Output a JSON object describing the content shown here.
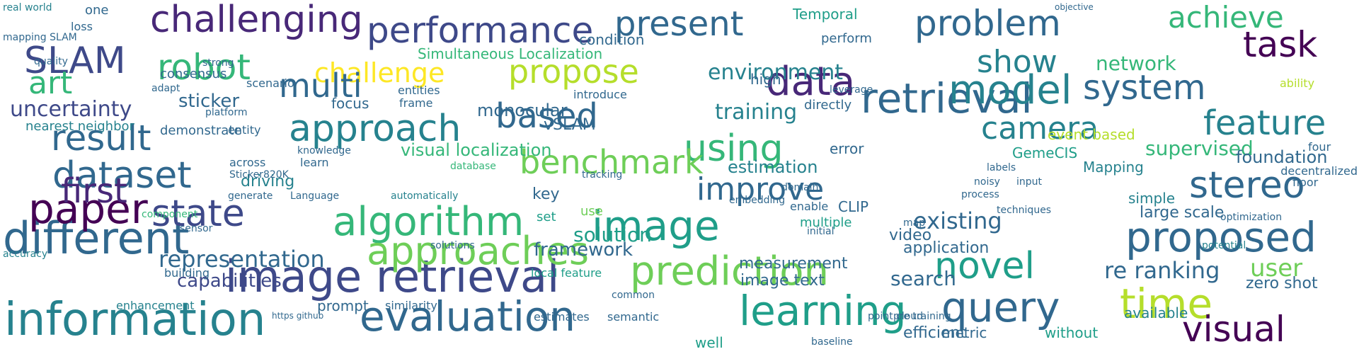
{
  "palette": [
    "#440154",
    "#482878",
    "#3e4989",
    "#31688e",
    "#26828e",
    "#1f9e89",
    "#35b779",
    "#6ece58",
    "#b5de2b",
    "#fde725"
  ],
  "words": [
    {
      "text": "different",
      "size": 62,
      "color": "#31688e"
    },
    {
      "text": "information",
      "size": 64,
      "color": "#26828e"
    },
    {
      "text": "image retrieval",
      "size": 62,
      "color": "#3e4989"
    },
    {
      "text": "evaluation",
      "size": 58,
      "color": "#31688e"
    },
    {
      "text": "learning",
      "size": 58,
      "color": "#1f9e89"
    },
    {
      "text": "query",
      "size": 58,
      "color": "#31688e"
    },
    {
      "text": "time",
      "size": 58,
      "color": "#b5de2b"
    },
    {
      "text": "visual",
      "size": 50,
      "color": "#440154"
    },
    {
      "text": "paper",
      "size": 58,
      "color": "#440154"
    },
    {
      "text": "state",
      "size": 52,
      "color": "#3e4989"
    },
    {
      "text": "algorithm",
      "size": 56,
      "color": "#35b779"
    },
    {
      "text": "image",
      "size": 58,
      "color": "#1f9e89"
    },
    {
      "text": "proposed",
      "size": 58,
      "color": "#31688e"
    },
    {
      "text": "approaches",
      "size": 54,
      "color": "#6ece58"
    },
    {
      "text": "prediction",
      "size": 56,
      "color": "#6ece58"
    },
    {
      "text": "novel",
      "size": 52,
      "color": "#1f9e89"
    },
    {
      "text": "retrieval",
      "size": 58,
      "color": "#31688e"
    },
    {
      "text": "model",
      "size": 56,
      "color": "#26828e"
    },
    {
      "text": "stereo",
      "size": 52,
      "color": "#31688e"
    },
    {
      "text": "dataset",
      "size": 52,
      "color": "#31688e"
    },
    {
      "text": "first",
      "size": 48,
      "color": "#482878"
    },
    {
      "text": "result",
      "size": 50,
      "color": "#31688e"
    },
    {
      "text": "approach",
      "size": 52,
      "color": "#26828e"
    },
    {
      "text": "based",
      "size": 48,
      "color": "#31688e"
    },
    {
      "text": "using",
      "size": 52,
      "color": "#35b779"
    },
    {
      "text": "benchmark",
      "size": 46,
      "color": "#6ece58"
    },
    {
      "text": "improve",
      "size": 44,
      "color": "#31688e"
    },
    {
      "text": "feature",
      "size": 48,
      "color": "#26828e"
    },
    {
      "text": "camera",
      "size": 44,
      "color": "#26828e"
    },
    {
      "text": "system",
      "size": 48,
      "color": "#31688e"
    },
    {
      "text": "data",
      "size": 56,
      "color": "#482878"
    },
    {
      "text": "robot",
      "size": 50,
      "color": "#35b779"
    },
    {
      "text": "challenging",
      "size": 52,
      "color": "#482878"
    },
    {
      "text": "SLAM",
      "size": 52,
      "color": "#3e4989"
    },
    {
      "text": "performance",
      "size": 50,
      "color": "#3e4989"
    },
    {
      "text": "present",
      "size": 48,
      "color": "#31688e"
    },
    {
      "text": "problem",
      "size": 50,
      "color": "#31688e"
    },
    {
      "text": "achieve",
      "size": 42,
      "color": "#35b779"
    },
    {
      "text": "task",
      "size": 50,
      "color": "#440154"
    },
    {
      "text": "challenge",
      "size": 38,
      "color": "#fde725"
    },
    {
      "text": "propose",
      "size": 46,
      "color": "#b5de2b"
    },
    {
      "text": "show",
      "size": 44,
      "color": "#26828e"
    },
    {
      "text": "art",
      "size": 44,
      "color": "#35b779"
    },
    {
      "text": "multi",
      "size": 46,
      "color": "#31688e"
    },
    {
      "text": "uncertainty",
      "size": 30,
      "color": "#3e4989"
    },
    {
      "text": "representation",
      "size": 32,
      "color": "#31688e"
    },
    {
      "text": "capabilities",
      "size": 26,
      "color": "#3e4989"
    },
    {
      "text": "framework",
      "size": 26,
      "color": "#31688e"
    },
    {
      "text": "re ranking",
      "size": 32,
      "color": "#31688e"
    },
    {
      "text": "existing",
      "size": 32,
      "color": "#31688e"
    },
    {
      "text": "environment",
      "size": 30,
      "color": "#26828e"
    },
    {
      "text": "training",
      "size": 30,
      "color": "#26828e"
    },
    {
      "text": "network",
      "size": 28,
      "color": "#35b779"
    },
    {
      "text": "supervised",
      "size": 28,
      "color": "#35b779"
    },
    {
      "text": "user",
      "size": 34,
      "color": "#6ece58"
    },
    {
      "text": "search",
      "size": 28,
      "color": "#31688e"
    },
    {
      "text": "solution",
      "size": 28,
      "color": "#1f9e89"
    },
    {
      "text": "sticker",
      "size": 26,
      "color": "#31688e"
    },
    {
      "text": "monocular",
      "size": 24,
      "color": "#31688e"
    },
    {
      "text": "estimation",
      "size": 24,
      "color": "#26828e"
    },
    {
      "text": "visual localization",
      "size": 24,
      "color": "#35b779"
    },
    {
      "text": "foundation",
      "size": 24,
      "color": "#31688e"
    },
    {
      "text": "Simultaneous Localization",
      "size": 20,
      "color": "#35b779"
    },
    {
      "text": "condition",
      "size": 20,
      "color": "#31688e"
    },
    {
      "text": "vSLAM",
      "size": 22,
      "color": "#31688e"
    },
    {
      "text": "driving",
      "size": 22,
      "color": "#26828e"
    },
    {
      "text": "video",
      "size": 22,
      "color": "#31688e"
    },
    {
      "text": "GemeCIS",
      "size": 20,
      "color": "#1f9e89"
    },
    {
      "text": "application",
      "size": 22,
      "color": "#31688e"
    },
    {
      "text": "image text",
      "size": 22,
      "color": "#31688e"
    },
    {
      "text": "measurement",
      "size": 22,
      "color": "#31688e"
    },
    {
      "text": "Mapping",
      "size": 20,
      "color": "#26828e"
    },
    {
      "text": "large scale",
      "size": 22,
      "color": "#31688e"
    },
    {
      "text": "efficient",
      "size": 22,
      "color": "#31688e"
    },
    {
      "text": "Temporal",
      "size": 20,
      "color": "#1f9e89"
    },
    {
      "text": "event based",
      "size": 20,
      "color": "#b5de2b"
    },
    {
      "text": "metric",
      "size": 20,
      "color": "#31688e"
    },
    {
      "text": "zero shot",
      "size": 22,
      "color": "#31688e"
    },
    {
      "text": "CLIP",
      "size": 20,
      "color": "#31688e"
    },
    {
      "text": "error",
      "size": 20,
      "color": "#31688e"
    },
    {
      "text": "prompt",
      "size": 20,
      "color": "#31688e"
    },
    {
      "text": "consensus",
      "size": 18,
      "color": "#31688e"
    },
    {
      "text": "demonstrate",
      "size": 18,
      "color": "#31688e"
    },
    {
      "text": "nearest neighbor",
      "size": 18,
      "color": "#26828e"
    },
    {
      "text": "well",
      "size": 20,
      "color": "#1f9e89"
    },
    {
      "text": "without",
      "size": 20,
      "color": "#1f9e89"
    },
    {
      "text": "available",
      "size": 20,
      "color": "#26828e"
    },
    {
      "text": "simple",
      "size": 20,
      "color": "#26828e"
    },
    {
      "text": "decentralized",
      "size": 16,
      "color": "#31688e"
    },
    {
      "text": "high",
      "size": 20,
      "color": "#31688e"
    },
    {
      "text": "focus",
      "size": 20,
      "color": "#31688e"
    },
    {
      "text": "multiple",
      "size": 18,
      "color": "#1f9e89"
    },
    {
      "text": "local feature",
      "size": 16,
      "color": "#1f9e89"
    },
    {
      "text": "building",
      "size": 16,
      "color": "#31688e"
    },
    {
      "text": "enhancement",
      "size": 16,
      "color": "#26828e"
    },
    {
      "text": "similarity",
      "size": 16,
      "color": "#31688e"
    },
    {
      "text": "estimates",
      "size": 16,
      "color": "#31688e"
    },
    {
      "text": "semantic",
      "size": 16,
      "color": "#31688e"
    },
    {
      "text": "learn",
      "size": 16,
      "color": "#31688e"
    },
    {
      "text": "knowledge",
      "size": 14,
      "color": "#31688e"
    },
    {
      "text": "across",
      "size": 16,
      "color": "#31688e"
    },
    {
      "text": "entity",
      "size": 16,
      "color": "#31688e"
    },
    {
      "text": "platform",
      "size": 14,
      "color": "#31688e"
    },
    {
      "text": "accuracy",
      "size": 14,
      "color": "#26828e"
    },
    {
      "text": "quality",
      "size": 14,
      "color": "#31688e"
    },
    {
      "text": "loss",
      "size": 16,
      "color": "#31688e"
    },
    {
      "text": "real world",
      "size": 14,
      "color": "#26828e"
    },
    {
      "text": "mapping SLAM",
      "size": 14,
      "color": "#31688e"
    },
    {
      "text": "generate",
      "size": 14,
      "color": "#31688e"
    },
    {
      "text": "Language",
      "size": 14,
      "color": "#31688e"
    },
    {
      "text": "automatically",
      "size": 14,
      "color": "#26828e"
    },
    {
      "text": "database",
      "size": 14,
      "color": "#35b779"
    },
    {
      "text": "tracking",
      "size": 14,
      "color": "#31688e"
    },
    {
      "text": "embedding",
      "size": 14,
      "color": "#31688e"
    },
    {
      "text": "domain",
      "size": 14,
      "color": "#31688e"
    },
    {
      "text": "Sticker820K",
      "size": 14,
      "color": "#31688e"
    },
    {
      "text": "sensor",
      "size": 14,
      "color": "#31688e"
    },
    {
      "text": "component",
      "size": 14,
      "color": "#35b779"
    },
    {
      "text": "key",
      "size": 22,
      "color": "#31688e"
    },
    {
      "text": "set",
      "size": 18,
      "color": "#1f9e89"
    },
    {
      "text": "use",
      "size": 18,
      "color": "#6ece58"
    },
    {
      "text": "common",
      "size": 14,
      "color": "#31688e"
    },
    {
      "text": "point cloud",
      "size": 14,
      "color": "#31688e"
    },
    {
      "text": "pre training",
      "size": 14,
      "color": "#31688e"
    },
    {
      "text": "baseline",
      "size": 14,
      "color": "#31688e"
    },
    {
      "text": "entities",
      "size": 16,
      "color": "#31688e"
    },
    {
      "text": "frame",
      "size": 16,
      "color": "#31688e"
    },
    {
      "text": "introduce",
      "size": 16,
      "color": "#31688e"
    },
    {
      "text": "scenario",
      "size": 16,
      "color": "#31688e"
    },
    {
      "text": "strong",
      "size": 14,
      "color": "#31688e"
    },
    {
      "text": "adapt",
      "size": 14,
      "color": "#31688e"
    },
    {
      "text": "directly",
      "size": 18,
      "color": "#31688e"
    },
    {
      "text": "perform",
      "size": 18,
      "color": "#31688e"
    },
    {
      "text": "leverage",
      "size": 14,
      "color": "#31688e"
    },
    {
      "text": "labels",
      "size": 14,
      "color": "#31688e"
    },
    {
      "text": "optimization",
      "size": 14,
      "color": "#31688e"
    },
    {
      "text": "floor",
      "size": 16,
      "color": "#31688e"
    },
    {
      "text": "four",
      "size": 16,
      "color": "#31688e"
    },
    {
      "text": "ability",
      "size": 16,
      "color": "#b5de2b"
    },
    {
      "text": "one",
      "size": 18,
      "color": "#31688e"
    },
    {
      "text": "objective",
      "size": 12,
      "color": "#31688e"
    },
    {
      "text": "potential",
      "size": 14,
      "color": "#26828e"
    },
    {
      "text": "https github",
      "size": 12,
      "color": "#31688e"
    },
    {
      "text": "initial",
      "size": 14,
      "color": "#31688e"
    },
    {
      "text": "enable",
      "size": 16,
      "color": "#31688e"
    },
    {
      "text": "solutions",
      "size": 14,
      "color": "#31688e"
    },
    {
      "text": "map",
      "size": 14,
      "color": "#31688e"
    },
    {
      "text": "process",
      "size": 14,
      "color": "#31688e"
    },
    {
      "text": "noisy",
      "size": 14,
      "color": "#31688e"
    },
    {
      "text": "techniques",
      "size": 14,
      "color": "#31688e"
    },
    {
      "text": "input",
      "size": 14,
      "color": "#31688e"
    }
  ]
}
